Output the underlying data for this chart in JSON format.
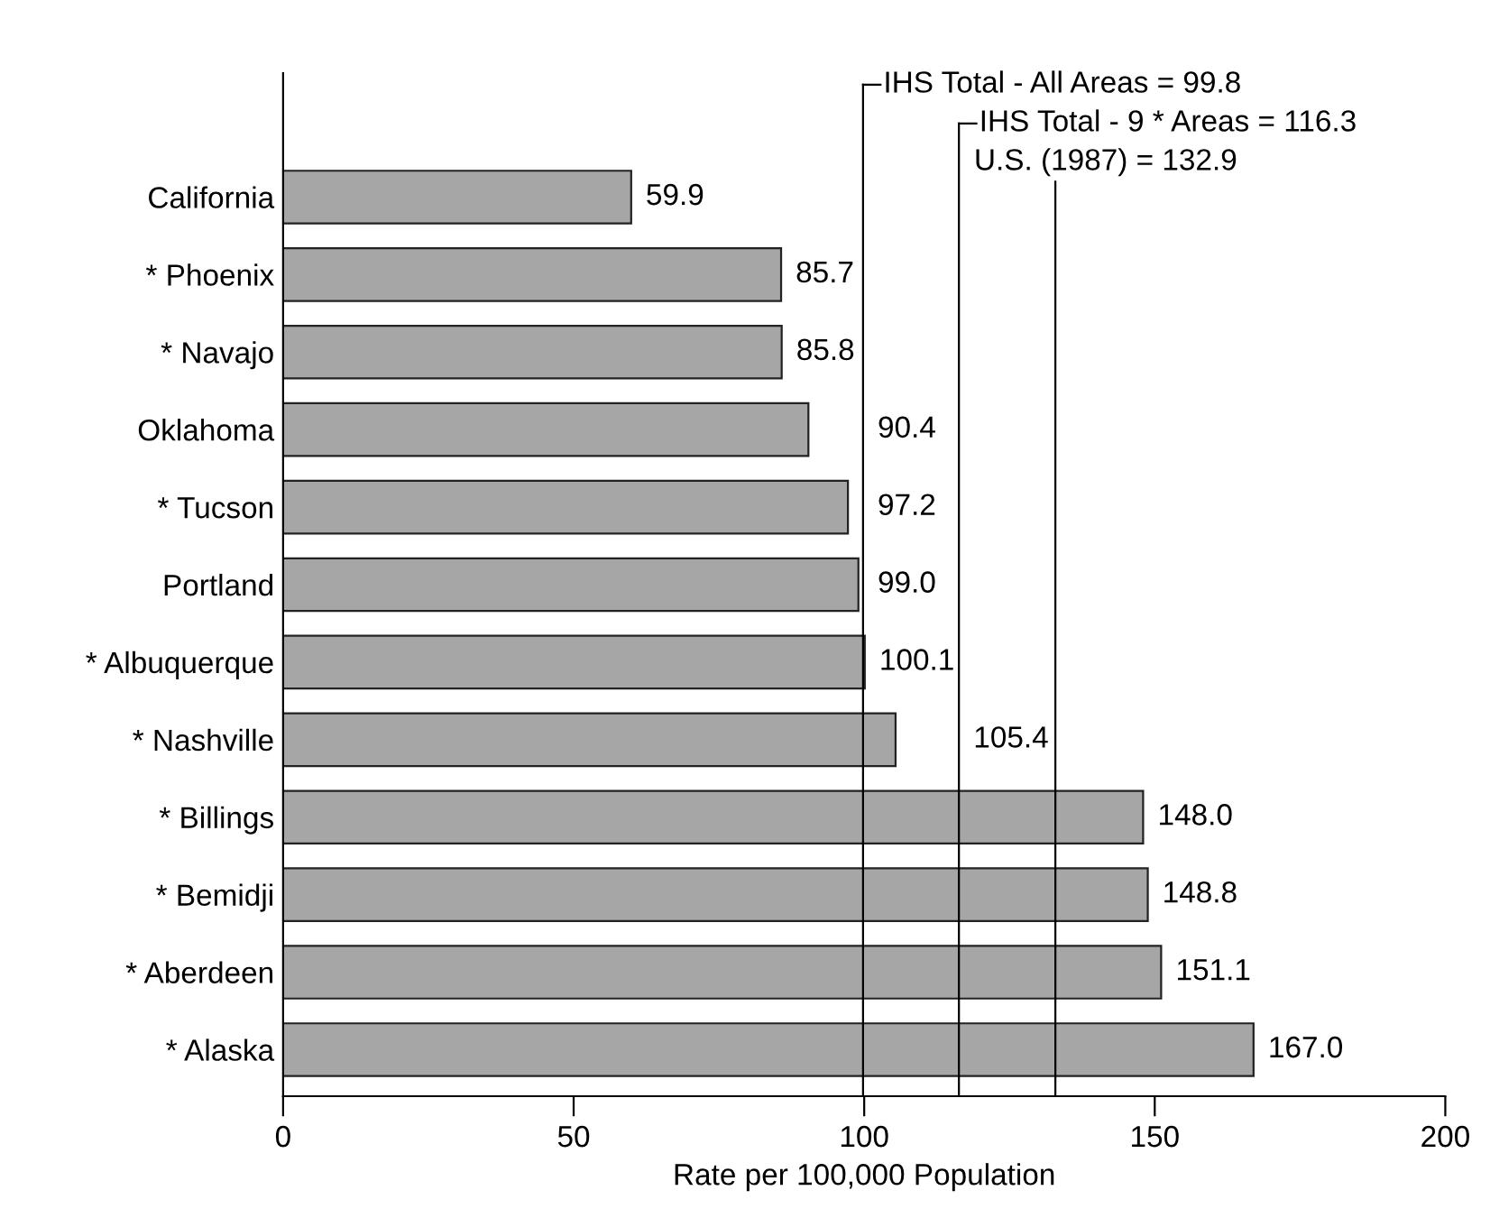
{
  "chart_data": {
    "type": "bar",
    "orientation": "horizontal",
    "categories": [
      "California",
      "* Phoenix",
      "* Navajo",
      "Oklahoma",
      "* Tucson",
      "Portland",
      "* Albuquerque",
      "* Nashville",
      "* Billings",
      "* Bemidji",
      "* Aberdeen",
      "* Alaska"
    ],
    "values": [
      59.9,
      85.7,
      85.8,
      90.4,
      97.2,
      99.0,
      100.1,
      105.4,
      148.0,
      148.8,
      151.1,
      167.0
    ],
    "color": "#a6a6a6",
    "value_labels": [
      "59.9",
      "85.7",
      "85.8",
      "90.4",
      "97.2",
      "99.0",
      "100.1",
      "105.4",
      "148.0",
      "148.8",
      "151.1",
      "167.0"
    ],
    "xlabel": "Rate per 100,000 Population",
    "xlim": [
      0,
      200
    ],
    "xticks": [
      0,
      50,
      100,
      150,
      200
    ],
    "grid": false,
    "ref_lines": [
      {
        "axis": "x",
        "value": 99.8,
        "label": "IHS Total - All Areas = 99.8",
        "color": "#000000"
      },
      {
        "axis": "x",
        "value": 116.3,
        "label": "IHS Total - 9 * Areas = 116.3",
        "color": "#000000"
      },
      {
        "axis": "x",
        "value": 132.9,
        "label": "U.S. (1987) = 132.9",
        "color": "#000000"
      }
    ]
  }
}
